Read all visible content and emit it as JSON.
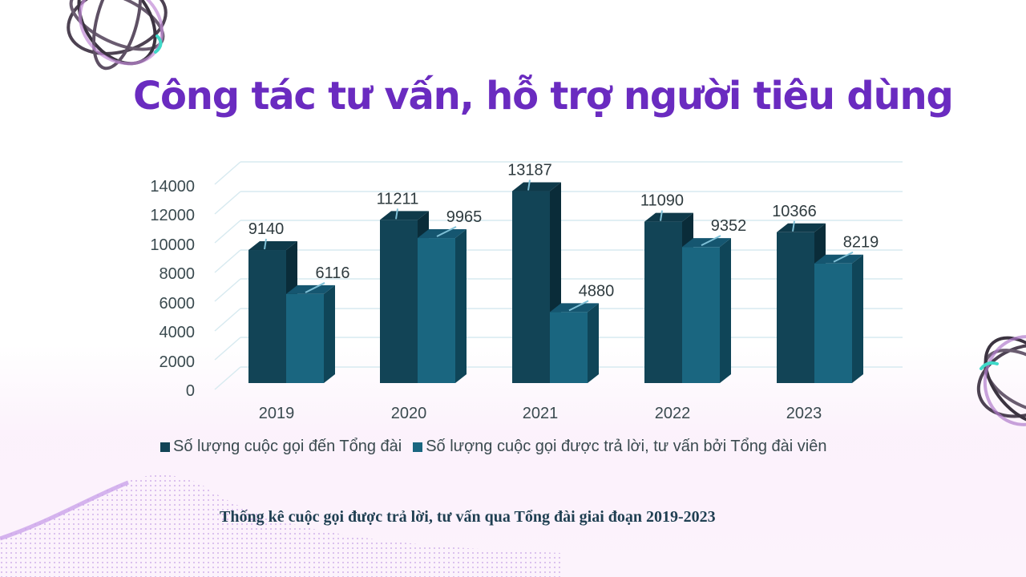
{
  "slide": {
    "title": "Công tác tư vấn, hỗ trợ người tiêu dùng",
    "caption": "Thống kê cuộc gọi được trả lời, tư vấn qua Tổng đài giai đoạn 2019-2023"
  },
  "colors": {
    "title": "#6a2bc0",
    "series_calls": "#124456",
    "series_answered": "#1a6680",
    "gridline": "#d7eaf0",
    "caption": "#1f3f52"
  },
  "legend": {
    "items": [
      {
        "label": "Số lượng cuộc gọi đến Tổng đài",
        "color": "#124456"
      },
      {
        "label": "Số lượng cuộc gọi được trả lời, tư vấn bởi Tổng đài viên",
        "color": "#1a6680"
      }
    ]
  },
  "axis": {
    "y_ticks": [
      "14000",
      "12000",
      "10000",
      "8000",
      "6000",
      "4000",
      "2000",
      "0"
    ],
    "x_ticks": [
      "2019",
      "2020",
      "2021",
      "2022",
      "2023"
    ]
  },
  "chart_data": {
    "type": "bar",
    "subtype": "3d-clustered-column",
    "title": "Công tác tư vấn, hỗ trợ người tiêu dùng",
    "caption": "Thống kê cuộc gọi được trả lời, tư vấn qua Tổng đài giai đoạn 2019-2023",
    "categories": [
      "2019",
      "2020",
      "2021",
      "2022",
      "2023"
    ],
    "series": [
      {
        "name": "Số lượng cuộc gọi đến Tổng đài",
        "values": [
          9140,
          11211,
          13187,
          11090,
          10366
        ],
        "color": "#124456"
      },
      {
        "name": "Số lượng cuộc gọi được trả lời, tư vấn bởi Tổng đài viên",
        "values": [
          6116,
          9965,
          4880,
          9352,
          8219
        ],
        "color": "#1a6680"
      }
    ],
    "xlabel": "",
    "ylabel": "",
    "ylim": [
      0,
      14000
    ],
    "y_tick_step": 2000,
    "grid": true,
    "data_labels": true,
    "legend_position": "bottom"
  }
}
